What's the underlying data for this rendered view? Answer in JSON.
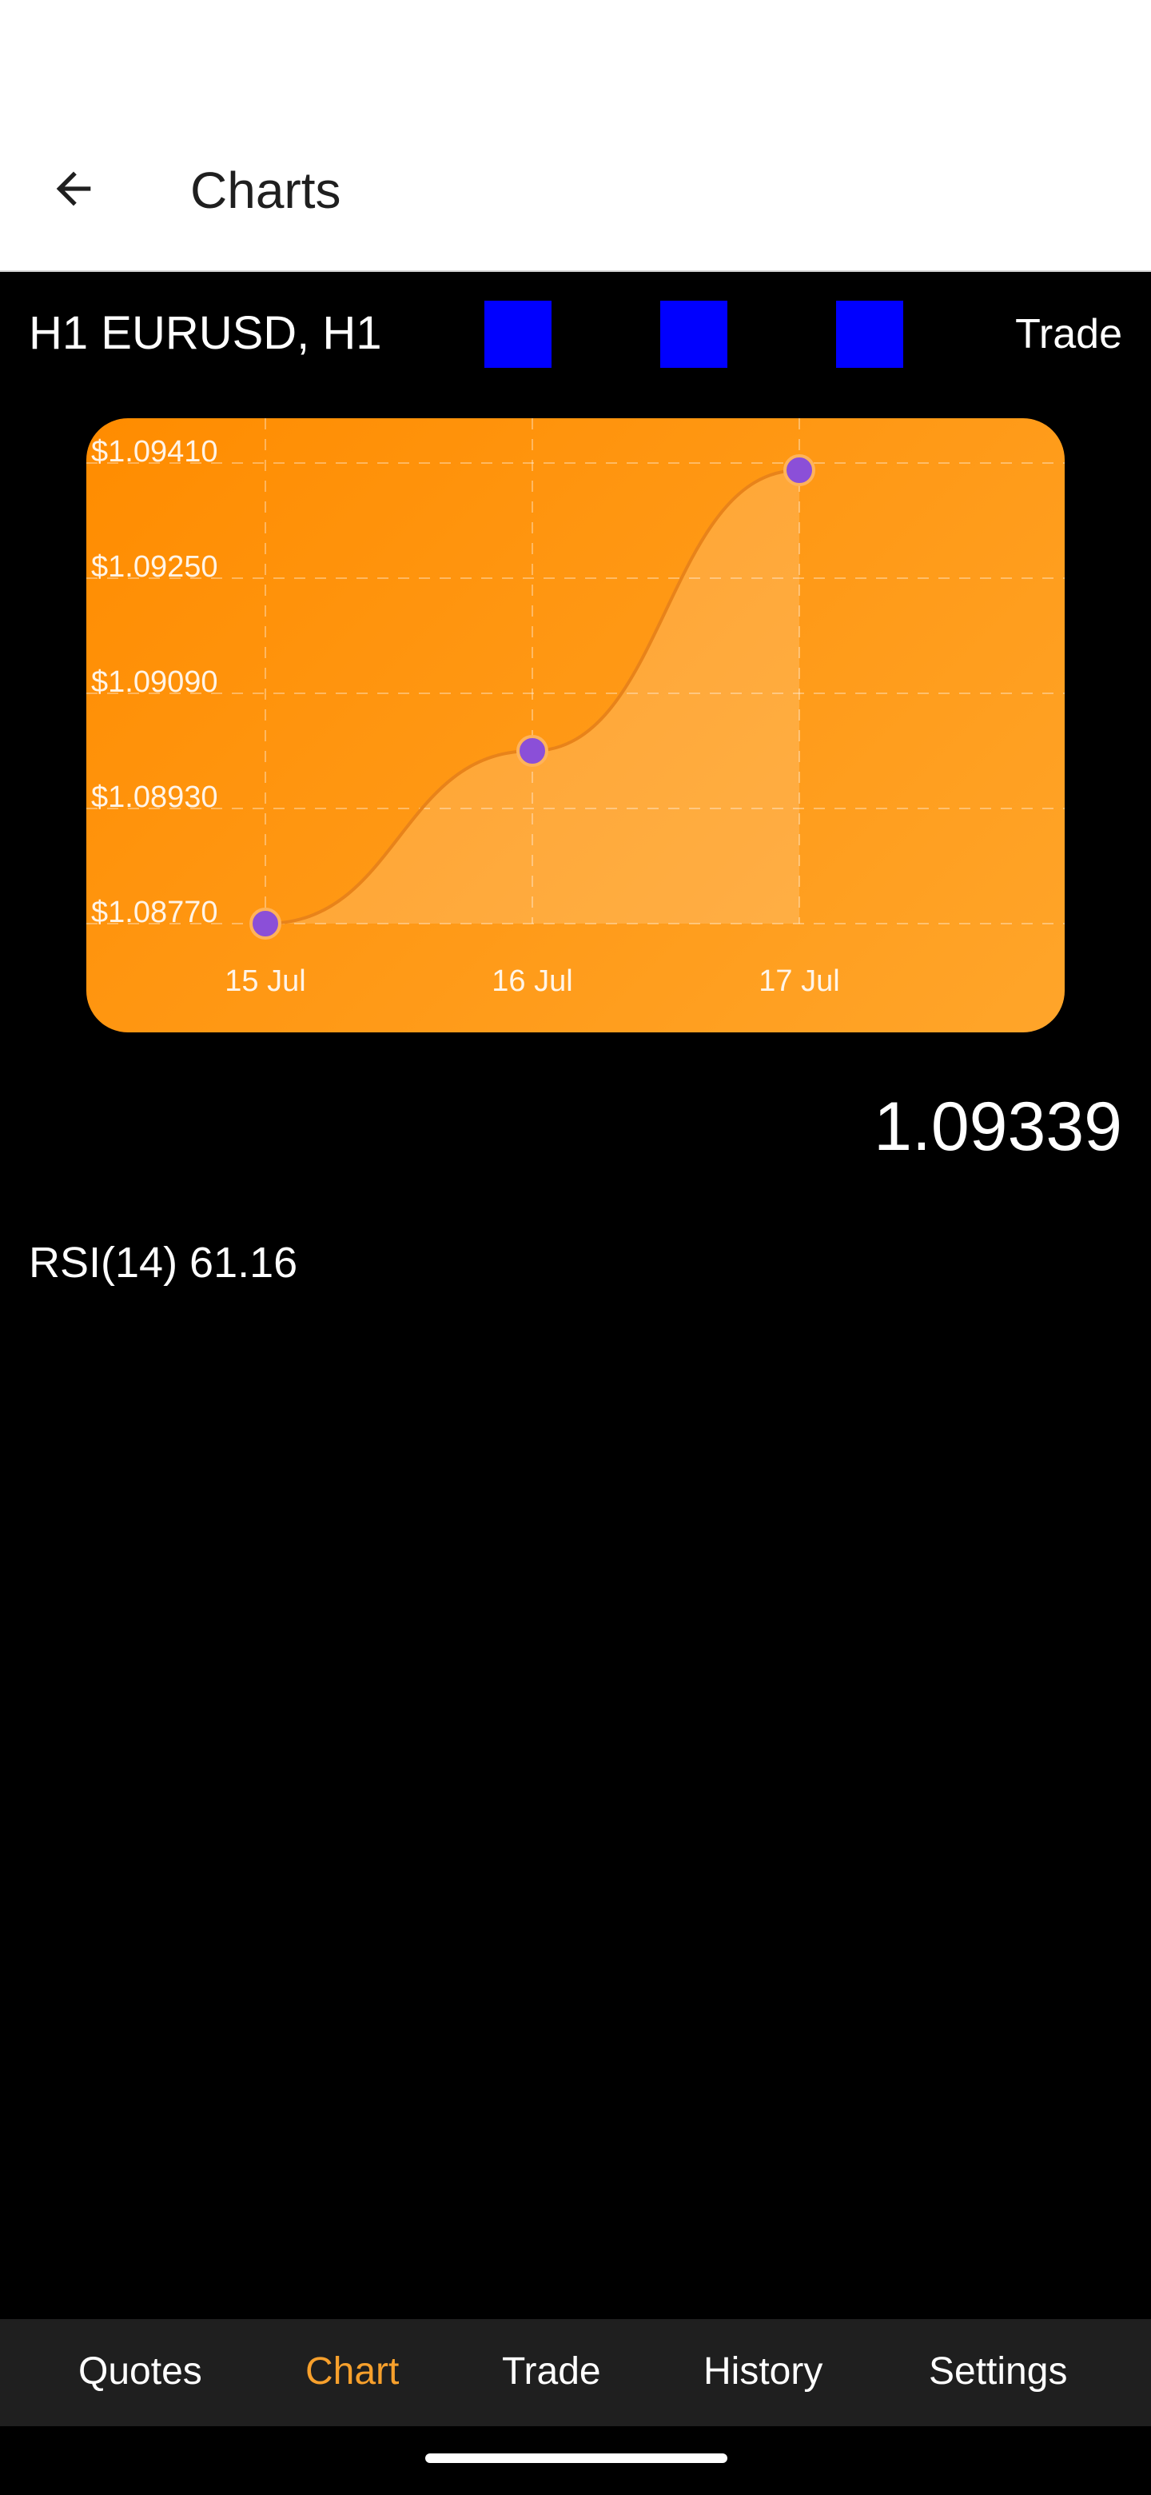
{
  "app_bar": {
    "title": "Charts"
  },
  "toolbar": {
    "symbol": "H1 EURUSD, H1",
    "trade_label": "Trade",
    "tool_color": "#0000ff"
  },
  "chart_data": {
    "type": "area",
    "x": [
      "15 Jul",
      "16 Jul",
      "17 Jul"
    ],
    "series": [
      {
        "values": [
          1.0877,
          1.0901,
          1.094
        ]
      }
    ],
    "y_ticks": [
      "$1.09410",
      "$1.09250",
      "$1.09090",
      "$1.08930",
      "$1.08770"
    ],
    "ylim": [
      1.0877,
      1.0941
    ],
    "grid": true,
    "colors": {
      "background": "#ff8c00",
      "point": "#8b4fd8",
      "line": "#e8831a"
    }
  },
  "price": {
    "value": "1.09339"
  },
  "indicator": {
    "rsi_label": "RSI(14) 61.16"
  },
  "bottom_nav": {
    "items": [
      {
        "label": "Quotes",
        "active": false
      },
      {
        "label": "Chart",
        "active": true
      },
      {
        "label": "Trade",
        "active": false
      },
      {
        "label": "History",
        "active": false
      },
      {
        "label": "Settings",
        "active": false
      }
    ],
    "active_color": "#f7a02c"
  }
}
